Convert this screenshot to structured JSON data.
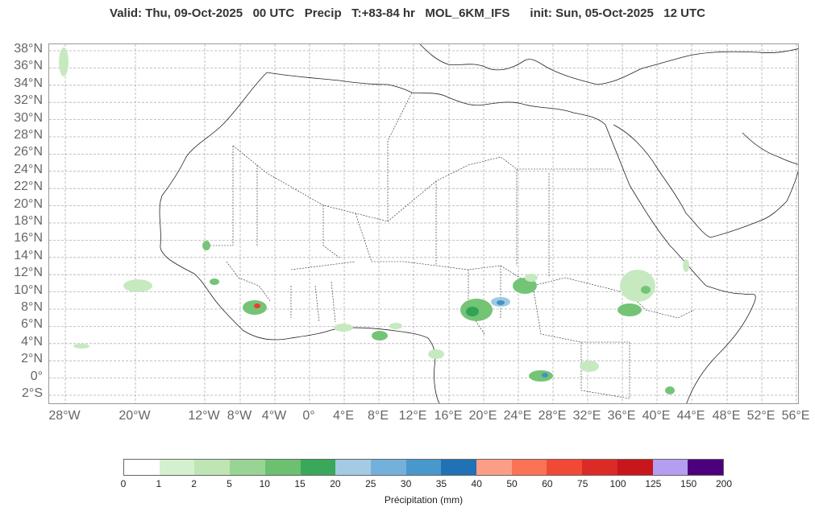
{
  "title": "Valid: Thu, 09-Oct-2025   00 UTC   Precip   T:+83-84 hr   MOL_6KM_IFS      init: Sun, 05-Oct-2025   12 UTC",
  "map": {
    "lat_labels": [
      "38°N",
      "36°N",
      "34°N",
      "32°N",
      "30°N",
      "28°N",
      "26°N",
      "24°N",
      "22°N",
      "20°N",
      "18°N",
      "16°N",
      "14°N",
      "12°N",
      "10°N",
      "8°N",
      "6°N",
      "4°N",
      "2°N",
      "0°",
      "2°S"
    ],
    "lon_labels": [
      "28°W",
      "20°W",
      "12°W",
      "8°W",
      "4°W",
      "0°",
      "4°E",
      "8°E",
      "12°E",
      "16°E",
      "20°E",
      "24°E",
      "28°E",
      "32°E",
      "36°E",
      "40°E",
      "44°E",
      "48°E",
      "52°E",
      "56°E"
    ],
    "colors": {
      "border": "#222222",
      "grid": "#b0b0b0",
      "light_green": "#c7e9c0",
      "mid_green": "#74c476",
      "dark_green": "#31a354",
      "light_blue": "#9ecae1",
      "mid_blue": "#4292c6",
      "red": "#ef3b2c"
    }
  },
  "colorbar": {
    "label": "Précipitation (mm)",
    "ticks": [
      "0",
      "1",
      "2",
      "5",
      "10",
      "15",
      "20",
      "25",
      "30",
      "35",
      "40",
      "50",
      "60",
      "75",
      "100",
      "125",
      "150",
      "200"
    ],
    "colors": [
      "#ffffff",
      "#d4f0cf",
      "#bfe5b4",
      "#98d594",
      "#6cc06f",
      "#3aa85a",
      "#a3cbe3",
      "#73b1db",
      "#4998cb",
      "#2171b5",
      "#fc9e85",
      "#fb7356",
      "#f04a36",
      "#dc2a26",
      "#c8171c",
      "#b49ef0",
      "#4c007e"
    ]
  }
}
